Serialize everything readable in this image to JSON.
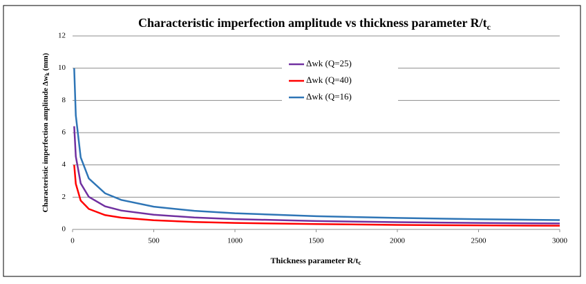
{
  "chart_data": {
    "type": "line",
    "title": [
      "Characteristic imperfection amplitude vs thickness parameter R/t",
      "c"
    ],
    "x_label": [
      "Thickness parameter R/t",
      "c"
    ],
    "y_label": [
      "Characteristic imperfection amplitude Δw",
      "k",
      " (mm)"
    ],
    "x": [
      10,
      20,
      50,
      100,
      200,
      300,
      500,
      750,
      1000,
      1500,
      2000,
      2500,
      3000
    ],
    "series": [
      {
        "name": "Δwk (Q=25)",
        "color": "#7030a0",
        "values": [
          6.4,
          4.53,
          2.86,
          2.02,
          1.43,
          1.17,
          0.91,
          0.74,
          0.64,
          0.52,
          0.45,
          0.4,
          0.37
        ]
      },
      {
        "name": "Δwk (Q=40)",
        "color": "#ff0000",
        "values": [
          4.0,
          2.83,
          1.79,
          1.27,
          0.89,
          0.73,
          0.57,
          0.46,
          0.4,
          0.33,
          0.28,
          0.25,
          0.23
        ]
      },
      {
        "name": "Δwk (Q=16)",
        "color": "#2e75b6",
        "values": [
          10.0,
          7.07,
          4.47,
          3.16,
          2.24,
          1.83,
          1.41,
          1.15,
          1.0,
          0.82,
          0.71,
          0.63,
          0.58
        ]
      }
    ],
    "xlim": [
      0,
      3000
    ],
    "xticks": [
      0,
      500,
      1000,
      1500,
      2000,
      2500,
      3000
    ],
    "ylim": [
      0,
      12
    ],
    "yticks": [
      0,
      2,
      4,
      6,
      8,
      10,
      12
    ],
    "grid": true,
    "legend": "top"
  }
}
